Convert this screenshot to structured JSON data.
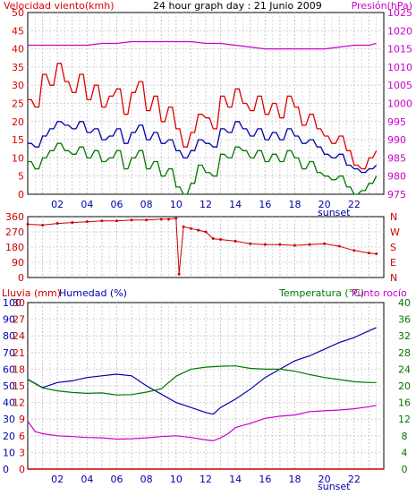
{
  "colors": {
    "wind": "#dd0000",
    "wind_avg": "#0000aa",
    "wind_low": "#007700",
    "pressure": "#cc00cc",
    "direction": "#cc0000",
    "rain": "#cc0000",
    "humidity": "#0000aa",
    "temperature": "#007700",
    "dewpoint": "#cc00cc",
    "grid": "#c8c8c8",
    "frame": "#000000"
  },
  "chart_data": [
    {
      "type": "line",
      "title": "24 hour graph day : 21 Junio 2009",
      "ylabel_left": "Velocidad viento(kmh)",
      "ylabel_right": "Presión(hPa)",
      "x_ticks": [
        "02",
        "04",
        "06",
        "08",
        "10",
        "12",
        "14",
        "16",
        "18",
        "20",
        "22"
      ],
      "x_annotation": "sunset",
      "y_left_ticks": [
        "0",
        "5",
        "10",
        "15",
        "20",
        "25",
        "30",
        "35",
        "40",
        "45",
        "50"
      ],
      "y_right_ticks": [
        "975",
        "980",
        "985",
        "990",
        "995",
        "1000",
        "1005",
        "1010",
        "1015",
        "1020",
        "1025"
      ],
      "ylim_left": [
        0,
        50
      ],
      "ylim_right": [
        975,
        1025
      ],
      "xlim": [
        0,
        24
      ],
      "series": [
        {
          "key": "gust",
          "color": "wind",
          "axis": "left",
          "x": [
            0,
            0.5,
            1,
            1.5,
            2,
            2.5,
            3,
            3.5,
            4,
            4.5,
            5,
            5.5,
            6,
            6.5,
            7,
            7.5,
            8,
            8.5,
            9,
            9.5,
            10,
            10.5,
            11,
            11.5,
            12,
            12.5,
            13,
            13.5,
            14,
            14.5,
            15,
            15.5,
            16,
            16.5,
            17,
            17.5,
            18,
            18.5,
            19,
            19.5,
            20,
            20.5,
            21,
            21.5,
            22,
            22.5,
            23,
            23.5
          ],
          "values": [
            26,
            24,
            33,
            30,
            36,
            31,
            28,
            33,
            26,
            30,
            24,
            27,
            29,
            22,
            28,
            31,
            23,
            27,
            20,
            24,
            18,
            13,
            17,
            22,
            21,
            18,
            27,
            24,
            29,
            25,
            23,
            27,
            22,
            25,
            21,
            27,
            24,
            19,
            22,
            18,
            16,
            14,
            16,
            12,
            8,
            7,
            10,
            12
          ]
        },
        {
          "key": "average",
          "color": "wind_avg",
          "axis": "left",
          "x": [
            0,
            0.5,
            1,
            1.5,
            2,
            2.5,
            3,
            3.5,
            4,
            4.5,
            5,
            5.5,
            6,
            6.5,
            7,
            7.5,
            8,
            8.5,
            9,
            9.5,
            10,
            10.5,
            11,
            11.5,
            12,
            12.5,
            13,
            13.5,
            14,
            14.5,
            15,
            15.5,
            16,
            16.5,
            17,
            17.5,
            18,
            18.5,
            19,
            19.5,
            20,
            20.5,
            21,
            21.5,
            22,
            22.5,
            23,
            23.5
          ],
          "values": [
            14,
            13,
            16,
            18,
            20,
            19,
            18,
            20,
            17,
            18,
            15,
            16,
            18,
            14,
            17,
            19,
            15,
            17,
            14,
            15,
            12,
            10,
            12,
            15,
            14,
            13,
            18,
            17,
            20,
            18,
            16,
            18,
            15,
            17,
            15,
            18,
            16,
            14,
            15,
            13,
            11,
            10,
            11,
            8,
            7,
            6,
            7,
            8
          ]
        },
        {
          "key": "low",
          "color": "wind_low",
          "axis": "left",
          "x": [
            0,
            0.5,
            1,
            1.5,
            2,
            2.5,
            3,
            3.5,
            4,
            4.5,
            5,
            5.5,
            6,
            6.5,
            7,
            7.5,
            8,
            8.5,
            9,
            9.5,
            10,
            10.5,
            11,
            11.5,
            12,
            12.5,
            13,
            13.5,
            14,
            14.5,
            15,
            15.5,
            16,
            16.5,
            17,
            17.5,
            18,
            18.5,
            19,
            19.5,
            20,
            20.5,
            21,
            21.5,
            22,
            22.5,
            23,
            23.5
          ],
          "values": [
            9,
            7,
            10,
            12,
            14,
            12,
            11,
            13,
            10,
            12,
            9,
            10,
            12,
            7,
            10,
            12,
            7,
            9,
            5,
            7,
            2,
            0,
            3,
            8,
            6,
            5,
            11,
            10,
            13,
            12,
            10,
            12,
            9,
            11,
            9,
            12,
            10,
            7,
            9,
            6,
            5,
            4,
            5,
            2,
            0,
            1,
            3,
            5
          ]
        },
        {
          "key": "pressure",
          "color": "pressure",
          "axis": "right",
          "x": [
            0,
            1,
            2,
            3,
            4,
            5,
            6,
            7,
            8,
            9,
            10,
            11,
            12,
            13,
            14,
            15,
            16,
            17,
            18,
            19,
            20,
            21,
            22,
            23,
            23.5
          ],
          "values": [
            1016,
            1016,
            1016,
            1016,
            1016,
            1016.5,
            1016.5,
            1017,
            1017,
            1017,
            1017,
            1017,
            1016.5,
            1016.5,
            1016,
            1015.5,
            1015,
            1015,
            1015,
            1015,
            1015,
            1015.5,
            1016,
            1016,
            1016.5
          ]
        }
      ]
    },
    {
      "type": "scatter",
      "ylabel": "",
      "y_left_ticks": [
        "360",
        "270",
        "180",
        "90",
        "0"
      ],
      "y_right_ticks": [
        "N",
        "W",
        "S",
        "E",
        "N"
      ],
      "ylim": [
        0,
        360
      ],
      "xlim": [
        0,
        24
      ],
      "series": [
        {
          "key": "direction",
          "color": "direction",
          "x": [
            0,
            1,
            2,
            3,
            4,
            5,
            6,
            7,
            8,
            9,
            9.5,
            10,
            10.2,
            10.5,
            11,
            11.5,
            12,
            12.5,
            13,
            14,
            15,
            16,
            17,
            18,
            19,
            20,
            21,
            22,
            23,
            23.5
          ],
          "values": [
            315,
            310,
            320,
            325,
            330,
            335,
            335,
            340,
            340,
            345,
            345,
            350,
            20,
            300,
            290,
            280,
            270,
            230,
            225,
            215,
            200,
            195,
            195,
            190,
            195,
            200,
            185,
            160,
            145,
            140
          ]
        }
      ]
    },
    {
      "type": "line",
      "ylabel_left_1": "Lluvia (mm)",
      "ylabel_left_2": "Humedad (%)",
      "ylabel_right": "Temperatura (°C)",
      "ylabel_right_2": "Punto rocío",
      "x_ticks": [
        "02",
        "04",
        "06",
        "08",
        "10",
        "12",
        "14",
        "16",
        "18",
        "20",
        "22"
      ],
      "x_annotation": "sunset",
      "y_humidity_ticks": [
        "0",
        "10",
        "20",
        "30",
        "40",
        "50",
        "60",
        "70",
        "80",
        "90",
        "100"
      ],
      "y_rain_ticks": [
        "0",
        "3",
        "6",
        "9",
        "12",
        "15",
        "18",
        "21",
        "24",
        "27",
        "30"
      ],
      "y_temp_ticks": [
        "0",
        "4",
        "8",
        "12",
        "16",
        "20",
        "24",
        "28",
        "32",
        "36",
        "40"
      ],
      "ylim_humidity": [
        0,
        100
      ],
      "ylim_temp": [
        0,
        40
      ],
      "xlim": [
        0,
        24
      ],
      "series": [
        {
          "key": "rain",
          "color": "rain",
          "axis": "humidity",
          "x": [
            0,
            24
          ],
          "values": [
            0,
            0
          ]
        },
        {
          "key": "humidity",
          "color": "humidity",
          "axis": "humidity",
          "x": [
            0,
            1,
            2,
            3,
            4,
            5,
            6,
            7,
            8,
            9,
            10,
            11,
            12,
            12.5,
            13,
            14,
            15,
            16,
            17,
            18,
            19,
            20,
            21,
            22,
            23,
            23.5
          ],
          "values": [
            54,
            49,
            52,
            53,
            55,
            56,
            57,
            56,
            50,
            45,
            40,
            37,
            34,
            33,
            37,
            42,
            48,
            55,
            60,
            65,
            68,
            72,
            76,
            79,
            83,
            85
          ]
        },
        {
          "key": "temperature",
          "color": "temperature",
          "axis": "temp",
          "x": [
            0,
            1,
            2,
            3,
            4,
            5,
            6,
            7,
            8,
            9,
            10,
            11,
            12,
            13,
            14,
            15,
            16,
            17,
            18,
            19,
            20,
            21,
            22,
            23,
            23.5
          ],
          "values": [
            21.5,
            19.5,
            18.8,
            18.4,
            18.2,
            18.3,
            17.8,
            17.9,
            18.5,
            19.3,
            22.3,
            24,
            24.5,
            24.7,
            24.8,
            24.2,
            24,
            24,
            23.5,
            22.7,
            22,
            21.5,
            21,
            20.8,
            20.8
          ]
        },
        {
          "key": "dewpoint",
          "color": "dewpoint",
          "axis": "temp",
          "x": [
            0,
            0.5,
            1,
            2,
            3,
            4,
            5,
            6,
            7,
            8,
            9,
            10,
            11,
            12,
            12.5,
            13,
            13.5,
            14,
            15,
            16,
            17,
            18,
            19,
            20,
            21,
            22,
            23,
            23.5
          ],
          "values": [
            11.5,
            9,
            8.5,
            8,
            7.8,
            7.6,
            7.5,
            7.2,
            7.3,
            7.5,
            7.8,
            8,
            7.6,
            7,
            6.8,
            7.5,
            8.5,
            10,
            11,
            12.2,
            12.7,
            13,
            13.8,
            14,
            14.2,
            14.5,
            15,
            15.3
          ]
        }
      ]
    }
  ]
}
